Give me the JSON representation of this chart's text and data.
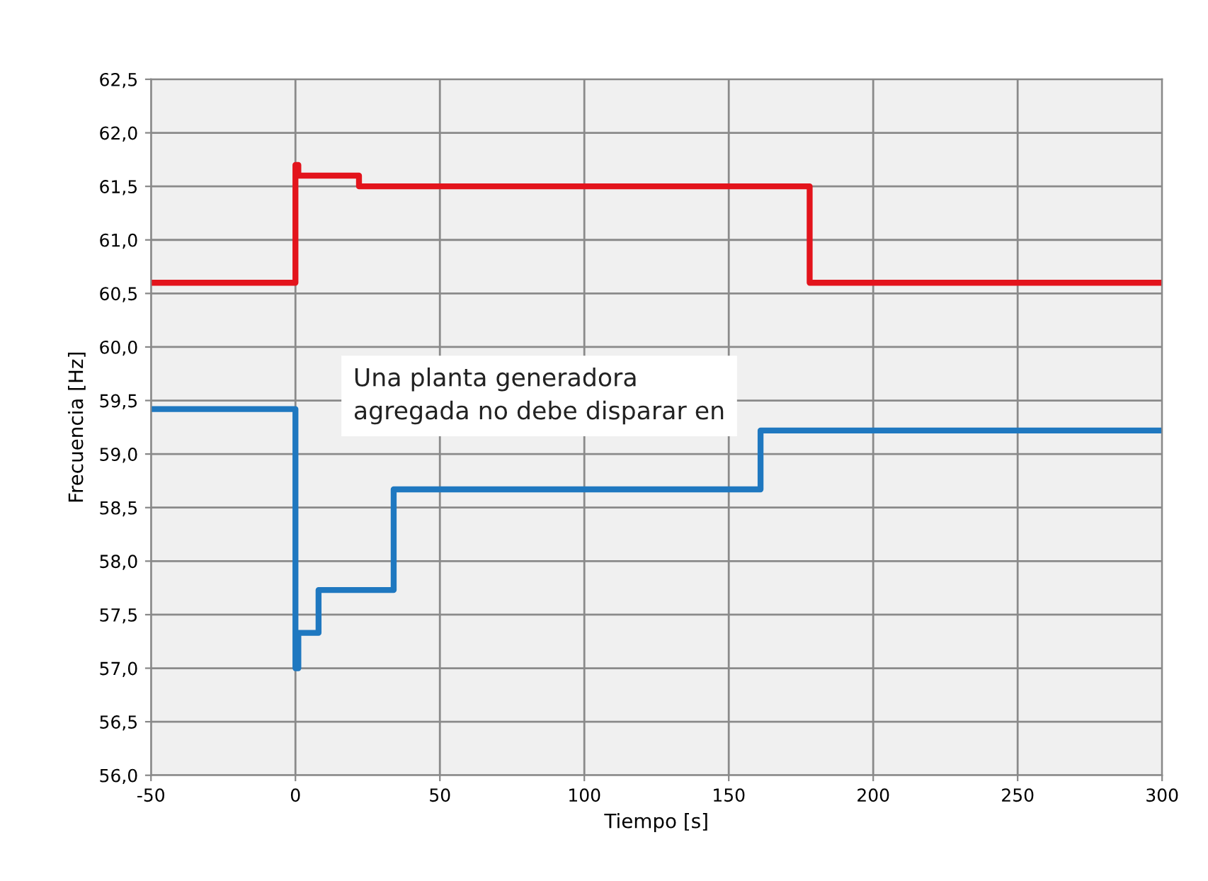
{
  "chart_data": {
    "type": "step",
    "xlabel": "Tiempo [s]",
    "ylabel": "Frecuencia [Hz]",
    "annotations": [
      "Una planta generadora\nagregada no debe disparar en"
    ],
    "series": [
      {
        "color": "#e3141c",
        "x": [
          -50,
          0,
          1,
          22,
          178,
          300
        ],
        "values": [
          60.6,
          61.7,
          61.6,
          61.5,
          60.6,
          60.6
        ]
      },
      {
        "color": "#1f78c0",
        "x": [
          -50,
          0,
          1,
          8,
          34,
          161,
          300
        ],
        "values": [
          59.42,
          57.0,
          57.33,
          57.73,
          58.67,
          59.22,
          59.22
        ]
      }
    ],
    "xlim": [
      -50,
      300
    ],
    "xticks": [
      -50,
      0,
      50,
      100,
      150,
      200,
      250,
      300
    ],
    "ylim": [
      56.0,
      62.5
    ],
    "yticks": [
      {
        "value": 56.0,
        "label": "56,0"
      },
      {
        "value": 56.5,
        "label": "56,5"
      },
      {
        "value": 57.0,
        "label": "57,0"
      },
      {
        "value": 57.5,
        "label": "57,5"
      },
      {
        "value": 58.0,
        "label": "58,0"
      },
      {
        "value": 58.5,
        "label": "58,5"
      },
      {
        "value": 59.0,
        "label": "59,0"
      },
      {
        "value": 59.5,
        "label": "59,5"
      },
      {
        "value": 60.0,
        "label": "60,0"
      },
      {
        "value": 60.5,
        "label": "60,5"
      },
      {
        "value": 61.0,
        "label": "61,0"
      },
      {
        "value": 61.5,
        "label": "61,5"
      },
      {
        "value": 62.0,
        "label": "62,0"
      },
      {
        "value": 62.5,
        "label": "62,5"
      }
    ],
    "grid": true
  }
}
